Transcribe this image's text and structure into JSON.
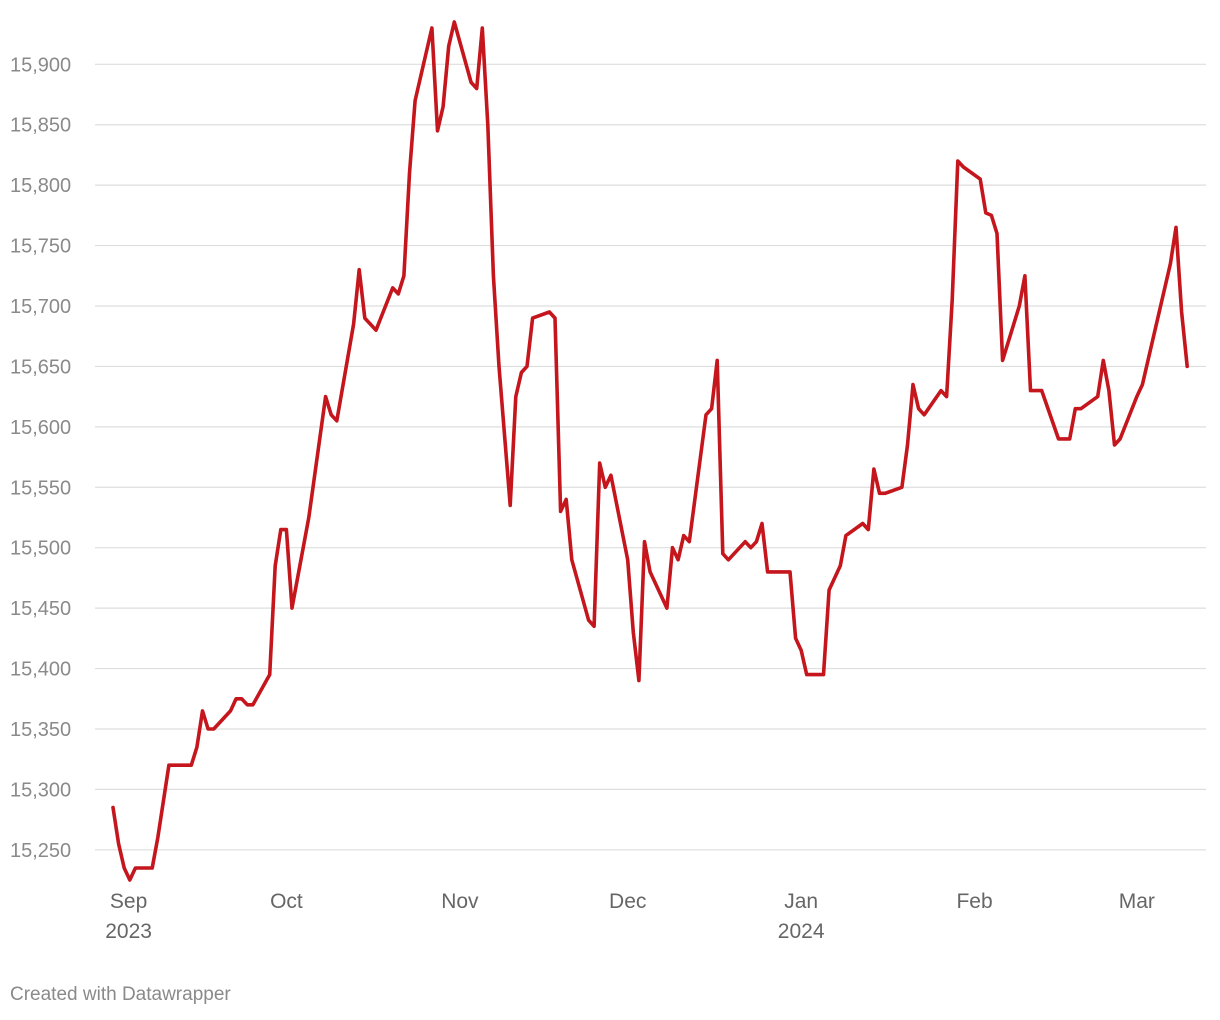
{
  "footer": {
    "credit": "Created with Datawrapper"
  },
  "chart_data": {
    "type": "line",
    "title": "",
    "xlabel": "",
    "ylabel": "",
    "grid": true,
    "ylim": [
      15230,
      15935
    ],
    "xlim": [
      "2023-08-31",
      "2024-03-08"
    ],
    "y_ticks": [
      15250,
      15300,
      15350,
      15400,
      15450,
      15500,
      15550,
      15600,
      15650,
      15700,
      15750,
      15800,
      15850,
      15900
    ],
    "x_ticks": [
      {
        "date": "2023-09-01",
        "label": "Sep",
        "sublabel": "2023"
      },
      {
        "date": "2023-10-01",
        "label": "Oct",
        "sublabel": ""
      },
      {
        "date": "2023-11-01",
        "label": "Nov",
        "sublabel": ""
      },
      {
        "date": "2023-12-01",
        "label": "Dec",
        "sublabel": ""
      },
      {
        "date": "2024-01-01",
        "label": "Jan",
        "sublabel": "2024"
      },
      {
        "date": "2024-02-01",
        "label": "Feb",
        "sublabel": ""
      },
      {
        "date": "2024-03-01",
        "label": "Mar",
        "sublabel": ""
      }
    ],
    "series": [
      {
        "color": "#c4161c",
        "points": [
          [
            "2023-08-31",
            15285
          ],
          [
            "2023-09-01",
            15255
          ],
          [
            "2023-09-02",
            15235
          ],
          [
            "2023-09-03",
            15225
          ],
          [
            "2023-09-04",
            15235
          ],
          [
            "2023-09-07",
            15235
          ],
          [
            "2023-09-08",
            15260
          ],
          [
            "2023-09-10",
            15320
          ],
          [
            "2023-09-14",
            15320
          ],
          [
            "2023-09-15",
            15335
          ],
          [
            "2023-09-16",
            15365
          ],
          [
            "2023-09-17",
            15350
          ],
          [
            "2023-09-18",
            15350
          ],
          [
            "2023-09-21",
            15365
          ],
          [
            "2023-09-22",
            15375
          ],
          [
            "2023-09-23",
            15375
          ],
          [
            "2023-09-24",
            15370
          ],
          [
            "2023-09-25",
            15370
          ],
          [
            "2023-09-28",
            15395
          ],
          [
            "2023-09-29",
            15485
          ],
          [
            "2023-09-30",
            15515
          ],
          [
            "2023-10-01",
            15515
          ],
          [
            "2023-10-02",
            15450
          ],
          [
            "2023-10-05",
            15525
          ],
          [
            "2023-10-08",
            15625
          ],
          [
            "2023-10-09",
            15610
          ],
          [
            "2023-10-10",
            15605
          ],
          [
            "2023-10-13",
            15685
          ],
          [
            "2023-10-14",
            15730
          ],
          [
            "2023-10-15",
            15690
          ],
          [
            "2023-10-17",
            15680
          ],
          [
            "2023-10-20",
            15715
          ],
          [
            "2023-10-21",
            15710
          ],
          [
            "2023-10-22",
            15725
          ],
          [
            "2023-10-23",
            15810
          ],
          [
            "2023-10-24",
            15870
          ],
          [
            "2023-10-27",
            15930
          ],
          [
            "2023-10-28",
            15845
          ],
          [
            "2023-10-29",
            15865
          ],
          [
            "2023-10-30",
            15915
          ],
          [
            "2023-10-31",
            15935
          ],
          [
            "2023-11-03",
            15885
          ],
          [
            "2023-11-04",
            15880
          ],
          [
            "2023-11-05",
            15930
          ],
          [
            "2023-11-06",
            15850
          ],
          [
            "2023-11-07",
            15725
          ],
          [
            "2023-11-08",
            15650
          ],
          [
            "2023-11-10",
            15535
          ],
          [
            "2023-11-11",
            15625
          ],
          [
            "2023-11-12",
            15645
          ],
          [
            "2023-11-13",
            15650
          ],
          [
            "2023-11-14",
            15690
          ],
          [
            "2023-11-17",
            15695
          ],
          [
            "2023-11-18",
            15690
          ],
          [
            "2023-11-19",
            15530
          ],
          [
            "2023-11-20",
            15540
          ],
          [
            "2023-11-21",
            15490
          ],
          [
            "2023-11-24",
            15440
          ],
          [
            "2023-11-25",
            15435
          ],
          [
            "2023-11-26",
            15570
          ],
          [
            "2023-11-27",
            15550
          ],
          [
            "2023-11-28",
            15560
          ],
          [
            "2023-12-01",
            15490
          ],
          [
            "2023-12-02",
            15430
          ],
          [
            "2023-12-03",
            15390
          ],
          [
            "2023-12-04",
            15505
          ],
          [
            "2023-12-05",
            15480
          ],
          [
            "2023-12-08",
            15450
          ],
          [
            "2023-12-09",
            15500
          ],
          [
            "2023-12-10",
            15490
          ],
          [
            "2023-12-11",
            15510
          ],
          [
            "2023-12-12",
            15505
          ],
          [
            "2023-12-15",
            15610
          ],
          [
            "2023-12-16",
            15615
          ],
          [
            "2023-12-17",
            15655
          ],
          [
            "2023-12-18",
            15495
          ],
          [
            "2023-12-19",
            15490
          ],
          [
            "2023-12-22",
            15505
          ],
          [
            "2023-12-23",
            15500
          ],
          [
            "2023-12-24",
            15505
          ],
          [
            "2023-12-25",
            15520
          ],
          [
            "2023-12-26",
            15480
          ],
          [
            "2023-12-29",
            15480
          ],
          [
            "2023-12-30",
            15480
          ],
          [
            "2023-12-31",
            15425
          ],
          [
            "2024-01-01",
            15415
          ],
          [
            "2024-01-02",
            15395
          ],
          [
            "2024-01-05",
            15395
          ],
          [
            "2024-01-06",
            15465
          ],
          [
            "2024-01-08",
            15485
          ],
          [
            "2024-01-09",
            15510
          ],
          [
            "2024-01-12",
            15520
          ],
          [
            "2024-01-13",
            15515
          ],
          [
            "2024-01-14",
            15565
          ],
          [
            "2024-01-15",
            15545
          ],
          [
            "2024-01-16",
            15545
          ],
          [
            "2024-01-19",
            15550
          ],
          [
            "2024-01-20",
            15585
          ],
          [
            "2024-01-21",
            15635
          ],
          [
            "2024-01-22",
            15615
          ],
          [
            "2024-01-23",
            15610
          ],
          [
            "2024-01-26",
            15630
          ],
          [
            "2024-01-27",
            15625
          ],
          [
            "2024-01-28",
            15705
          ],
          [
            "2024-01-29",
            15820
          ],
          [
            "2024-01-30",
            15815
          ],
          [
            "2024-02-02",
            15805
          ],
          [
            "2024-02-03",
            15777
          ],
          [
            "2024-02-04",
            15775
          ],
          [
            "2024-02-05",
            15760
          ],
          [
            "2024-02-06",
            15655
          ],
          [
            "2024-02-09",
            15700
          ],
          [
            "2024-02-10",
            15725
          ],
          [
            "2024-02-11",
            15630
          ],
          [
            "2024-02-13",
            15630
          ],
          [
            "2024-02-16",
            15590
          ],
          [
            "2024-02-18",
            15590
          ],
          [
            "2024-02-19",
            15615
          ],
          [
            "2024-02-20",
            15615
          ],
          [
            "2024-02-23",
            15625
          ],
          [
            "2024-02-24",
            15655
          ],
          [
            "2024-02-25",
            15630
          ],
          [
            "2024-02-26",
            15585
          ],
          [
            "2024-02-27",
            15590
          ],
          [
            "2024-03-01",
            15625
          ],
          [
            "2024-03-02",
            15635
          ],
          [
            "2024-03-03",
            15655
          ],
          [
            "2024-03-06",
            15715
          ],
          [
            "2024-03-07",
            15735
          ],
          [
            "2024-03-08",
            15765
          ],
          [
            "2024-03-09",
            15695
          ],
          [
            "2024-03-10",
            15650
          ]
        ]
      }
    ]
  }
}
